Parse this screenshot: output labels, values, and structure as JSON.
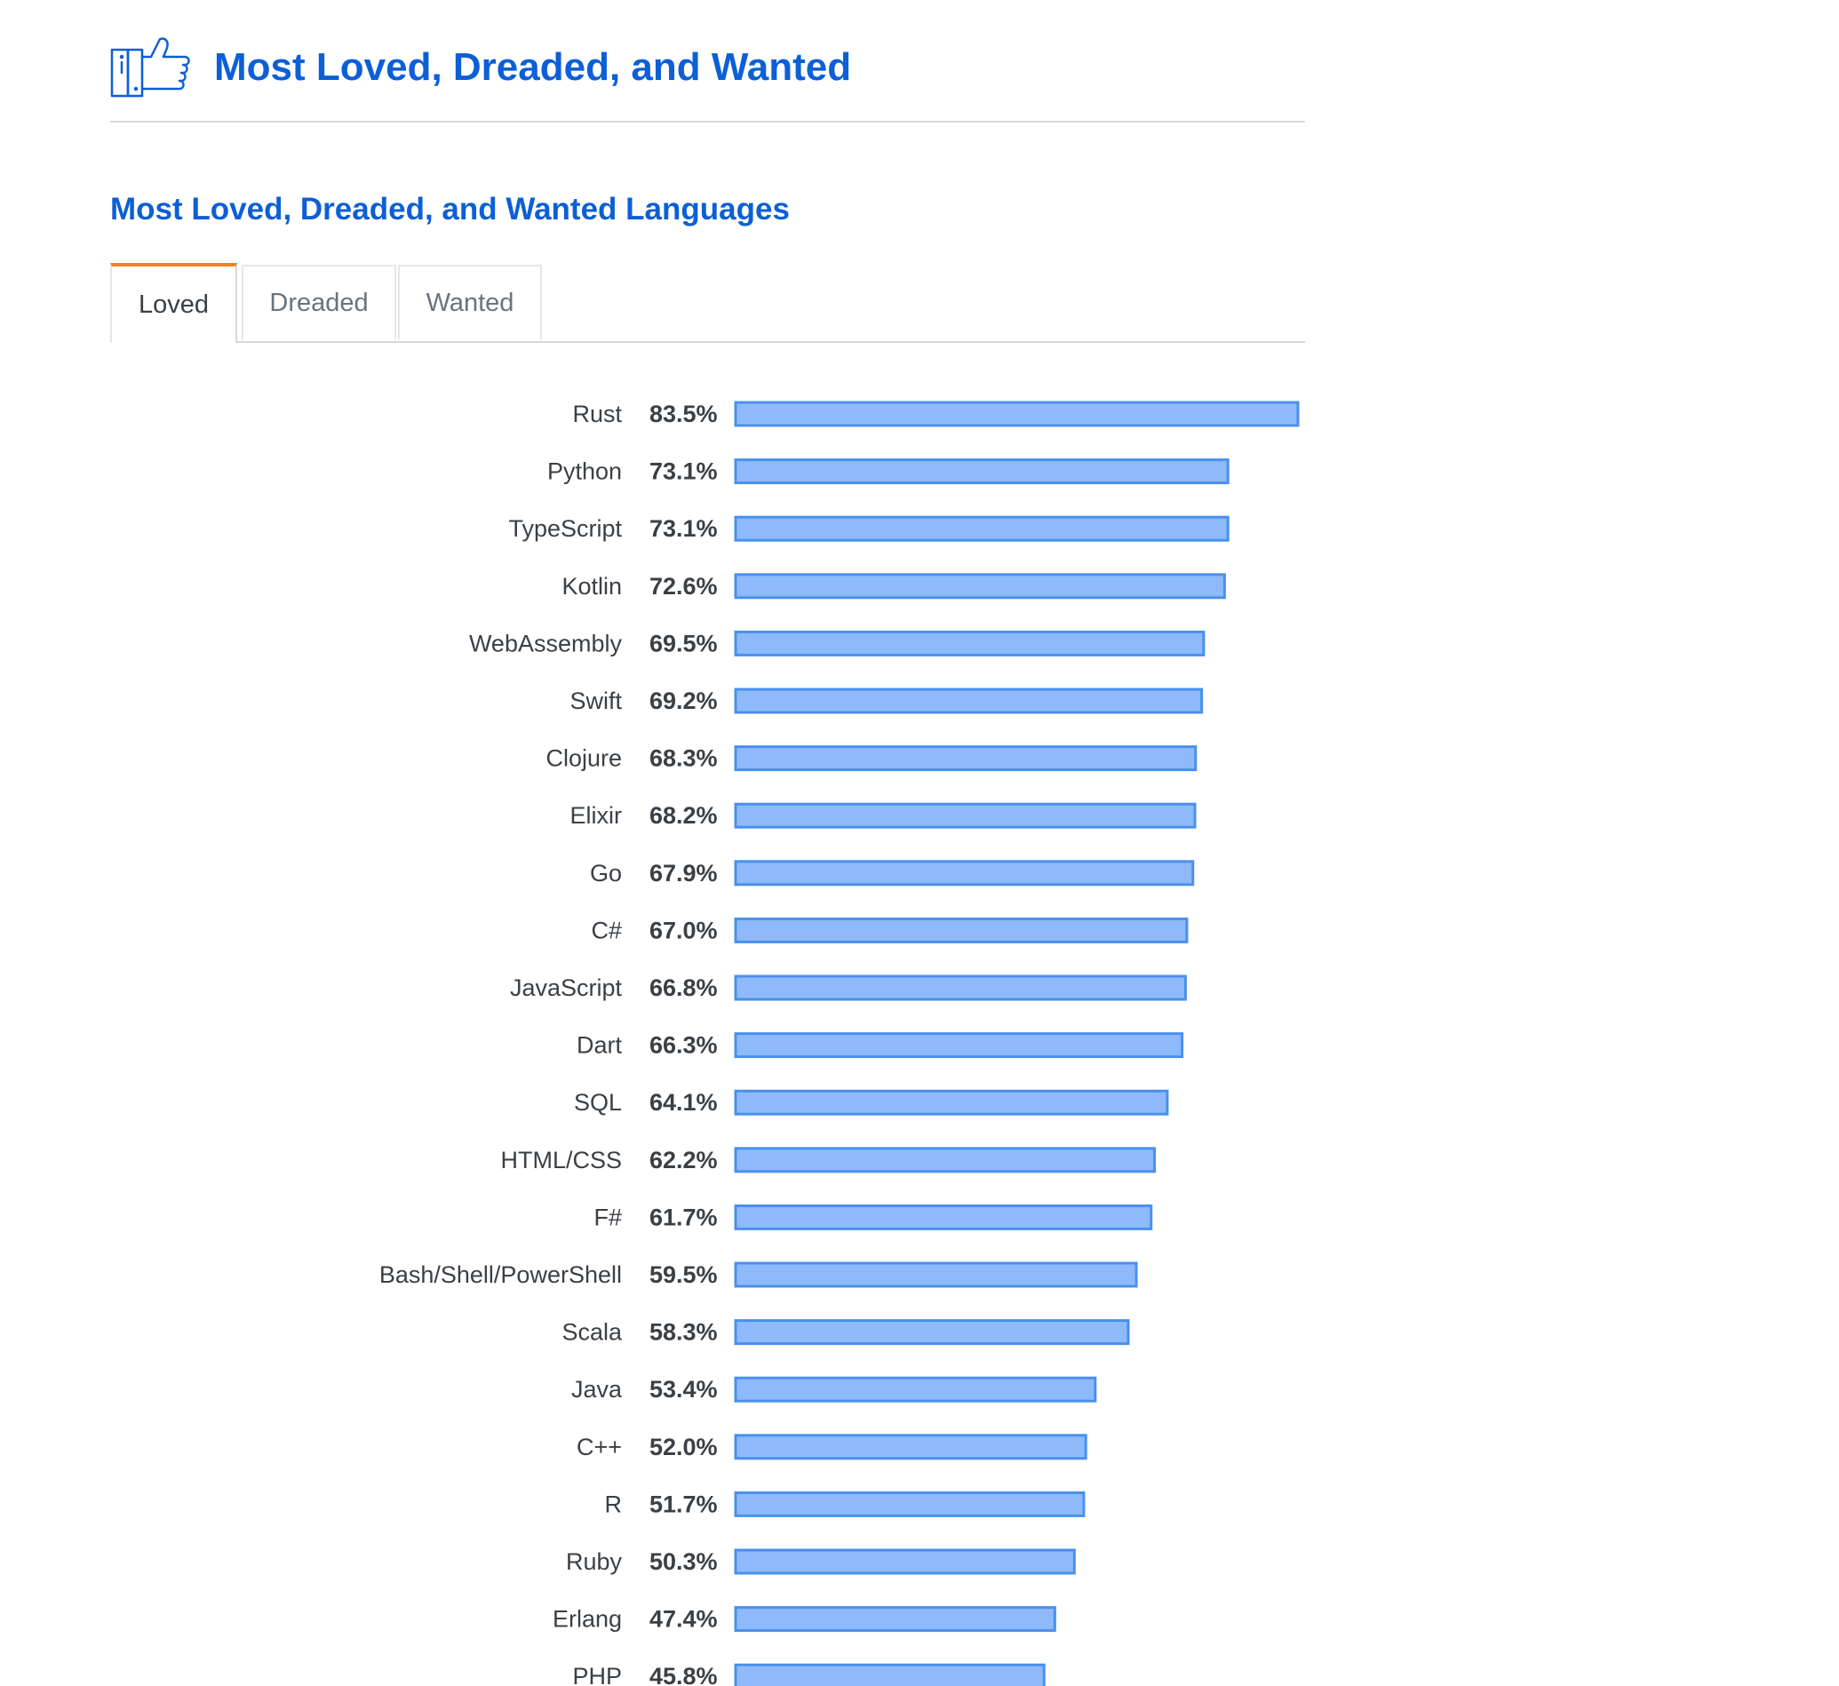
{
  "header": {
    "title": "Most Loved, Dreaded, and Wanted",
    "icon": "thumbs-up-icon",
    "accent_color": "#0c5fd6"
  },
  "subtitle": "Most Loved, Dreaded, and Wanted Languages",
  "tabs": [
    {
      "label": "Loved",
      "active": true
    },
    {
      "label": "Dreaded",
      "active": false
    },
    {
      "label": "Wanted",
      "active": false
    }
  ],
  "chart_data": {
    "type": "bar",
    "orientation": "horizontal",
    "bar_color": "#8ebafb",
    "bar_border_color": "#4a90ec",
    "categories": [
      "Rust",
      "Python",
      "TypeScript",
      "Kotlin",
      "WebAssembly",
      "Swift",
      "Clojure",
      "Elixir",
      "Go",
      "C#",
      "JavaScript",
      "Dart",
      "SQL",
      "HTML/CSS",
      "F#",
      "Bash/Shell/PowerShell",
      "Scala",
      "Java",
      "C++",
      "R",
      "Ruby",
      "Erlang",
      "PHP"
    ],
    "values": [
      83.5,
      73.1,
      73.1,
      72.6,
      69.5,
      69.2,
      68.3,
      68.2,
      67.9,
      67.0,
      66.8,
      66.3,
      64.1,
      62.2,
      61.7,
      59.5,
      58.3,
      53.4,
      52.0,
      51.7,
      50.3,
      47.4,
      45.8
    ],
    "value_labels": [
      "83.5%",
      "73.1%",
      "73.1%",
      "72.6%",
      "69.5%",
      "69.2%",
      "68.3%",
      "68.2%",
      "67.9%",
      "67.0%",
      "66.8%",
      "66.3%",
      "64.1%",
      "62.2%",
      "61.7%",
      "59.5%",
      "58.3%",
      "53.4%",
      "52.0%",
      "51.7%",
      "50.3%",
      "47.4%",
      "45.8%"
    ],
    "xlim": [
      0,
      83.5
    ],
    "grid": false,
    "legend": "none"
  }
}
